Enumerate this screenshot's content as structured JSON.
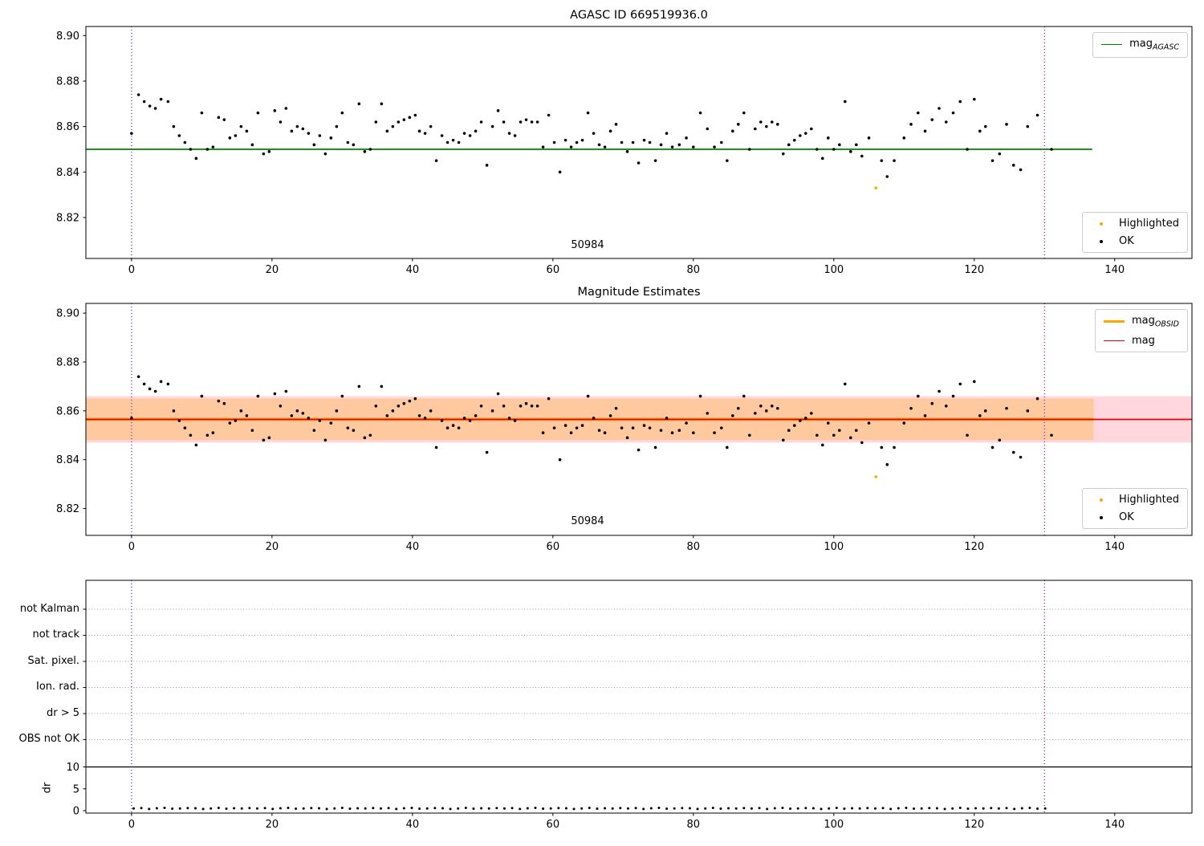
{
  "titles": {
    "top": "AGASC ID 669519936.0",
    "middle": "Magnitude Estimates"
  },
  "legends": {
    "highlighted_label": "Highlighted",
    "ok_label": "OK",
    "highlighted_color": "#ffa500",
    "ok_color": "#000000",
    "mag_agasc": {
      "main": "mag",
      "sub": "AGASC"
    },
    "mag_obsid": {
      "main": "mag",
      "sub": "OBSID"
    },
    "mag": {
      "main": "mag"
    }
  },
  "chart_data": {
    "type": "scatter",
    "shared": {
      "xlim": [
        -6.5,
        151
      ],
      "xticks": [
        0,
        20,
        40,
        60,
        80,
        100,
        120,
        140
      ],
      "vlines": {
        "x": [
          0,
          130
        ],
        "color": "#a000a0"
      },
      "obsid_label": "50984",
      "highlighted_points": [
        [
          106,
          8.833
        ]
      ],
      "ok_points": [
        [
          0.0,
          8.857
        ],
        [
          1.0,
          8.874
        ],
        [
          1.8,
          8.871
        ],
        [
          2.6,
          8.869
        ],
        [
          3.4,
          8.868
        ],
        [
          4.2,
          8.872
        ],
        [
          5.2,
          8.871
        ],
        [
          6.0,
          8.86
        ],
        [
          6.8,
          8.856
        ],
        [
          7.6,
          8.853
        ],
        [
          8.4,
          8.85
        ],
        [
          9.2,
          8.846
        ],
        [
          10.0,
          8.866
        ],
        [
          10.8,
          8.85
        ],
        [
          11.6,
          8.851
        ],
        [
          12.4,
          8.864
        ],
        [
          13.2,
          8.863
        ],
        [
          14.0,
          8.855
        ],
        [
          14.8,
          8.856
        ],
        [
          15.6,
          8.86
        ],
        [
          16.4,
          8.858
        ],
        [
          17.2,
          8.852
        ],
        [
          18.0,
          8.866
        ],
        [
          18.8,
          8.848
        ],
        [
          19.6,
          8.849
        ],
        [
          20.4,
          8.867
        ],
        [
          21.2,
          8.862
        ],
        [
          22.0,
          8.868
        ],
        [
          22.8,
          8.858
        ],
        [
          23.6,
          8.86
        ],
        [
          24.4,
          8.859
        ],
        [
          25.2,
          8.857
        ],
        [
          26.0,
          8.852
        ],
        [
          26.8,
          8.856
        ],
        [
          27.6,
          8.848
        ],
        [
          28.4,
          8.855
        ],
        [
          29.2,
          8.86
        ],
        [
          30.0,
          8.866
        ],
        [
          30.8,
          8.853
        ],
        [
          31.6,
          8.852
        ],
        [
          32.4,
          8.87
        ],
        [
          33.2,
          8.849
        ],
        [
          34.0,
          8.85
        ],
        [
          34.8,
          8.862
        ],
        [
          35.6,
          8.87
        ],
        [
          36.4,
          8.858
        ],
        [
          37.2,
          8.86
        ],
        [
          38.0,
          8.862
        ],
        [
          38.8,
          8.863
        ],
        [
          39.6,
          8.864
        ],
        [
          40.4,
          8.865
        ],
        [
          41.0,
          8.858
        ],
        [
          41.8,
          8.857
        ],
        [
          42.6,
          8.86
        ],
        [
          43.4,
          8.845
        ],
        [
          44.2,
          8.856
        ],
        [
          45.0,
          8.853
        ],
        [
          45.8,
          8.854
        ],
        [
          46.6,
          8.853
        ],
        [
          47.4,
          8.857
        ],
        [
          48.2,
          8.856
        ],
        [
          49.0,
          8.858
        ],
        [
          49.8,
          8.862
        ],
        [
          50.6,
          8.843
        ],
        [
          51.4,
          8.86
        ],
        [
          52.2,
          8.867
        ],
        [
          53.0,
          8.862
        ],
        [
          53.8,
          8.857
        ],
        [
          54.6,
          8.856
        ],
        [
          55.4,
          8.862
        ],
        [
          56.2,
          8.863
        ],
        [
          57.0,
          8.862
        ],
        [
          57.8,
          8.862
        ],
        [
          58.6,
          8.851
        ],
        [
          59.4,
          8.865
        ],
        [
          60.2,
          8.853
        ],
        [
          61.0,
          8.84
        ],
        [
          61.8,
          8.854
        ],
        [
          62.6,
          8.851
        ],
        [
          63.4,
          8.853
        ],
        [
          64.2,
          8.854
        ],
        [
          65.0,
          8.866
        ],
        [
          65.8,
          8.857
        ],
        [
          66.6,
          8.852
        ],
        [
          67.4,
          8.851
        ],
        [
          68.2,
          8.858
        ],
        [
          69.0,
          8.861
        ],
        [
          69.8,
          8.853
        ],
        [
          70.6,
          8.849
        ],
        [
          71.4,
          8.853
        ],
        [
          72.2,
          8.844
        ],
        [
          73.0,
          8.854
        ],
        [
          73.8,
          8.853
        ],
        [
          74.6,
          8.845
        ],
        [
          75.4,
          8.852
        ],
        [
          76.2,
          8.857
        ],
        [
          77.0,
          8.851
        ],
        [
          78.0,
          8.852
        ],
        [
          79.0,
          8.855
        ],
        [
          80.0,
          8.851
        ],
        [
          81.0,
          8.866
        ],
        [
          82.0,
          8.859
        ],
        [
          83.0,
          8.851
        ],
        [
          84.0,
          8.853
        ],
        [
          84.8,
          8.845
        ],
        [
          85.6,
          8.858
        ],
        [
          86.4,
          8.861
        ],
        [
          87.2,
          8.866
        ],
        [
          88.0,
          8.85
        ],
        [
          88.8,
          8.859
        ],
        [
          89.6,
          8.862
        ],
        [
          90.4,
          8.86
        ],
        [
          91.2,
          8.862
        ],
        [
          92.0,
          8.861
        ],
        [
          92.8,
          8.848
        ],
        [
          93.6,
          8.852
        ],
        [
          94.4,
          8.854
        ],
        [
          95.2,
          8.856
        ],
        [
          96.0,
          8.857
        ],
        [
          96.8,
          8.859
        ],
        [
          97.6,
          8.85
        ],
        [
          98.4,
          8.846
        ],
        [
          99.2,
          8.855
        ],
        [
          100.0,
          8.85
        ],
        [
          100.8,
          8.852
        ],
        [
          101.6,
          8.871
        ],
        [
          102.4,
          8.849
        ],
        [
          103.2,
          8.852
        ],
        [
          104.0,
          8.847
        ],
        [
          105.0,
          8.855
        ],
        [
          106.8,
          8.845
        ],
        [
          107.6,
          8.838
        ],
        [
          108.6,
          8.845
        ],
        [
          110.0,
          8.855
        ],
        [
          111.0,
          8.861
        ],
        [
          112.0,
          8.866
        ],
        [
          113.0,
          8.858
        ],
        [
          114.0,
          8.863
        ],
        [
          115.0,
          8.868
        ],
        [
          116.0,
          8.862
        ],
        [
          117.0,
          8.866
        ],
        [
          118.0,
          8.871
        ],
        [
          119.0,
          8.85
        ],
        [
          120.0,
          8.872
        ],
        [
          120.8,
          8.858
        ],
        [
          121.6,
          8.86
        ],
        [
          122.6,
          8.845
        ],
        [
          123.6,
          8.848
        ],
        [
          124.6,
          8.861
        ],
        [
          125.6,
          8.843
        ],
        [
          126.6,
          8.841
        ],
        [
          127.6,
          8.86
        ],
        [
          129.0,
          8.865
        ],
        [
          131.0,
          8.85
        ]
      ]
    },
    "top": {
      "title": "AGASC ID 669519936.0",
      "ylim": [
        8.802,
        8.904
      ],
      "yticks": [
        8.82,
        8.84,
        8.86,
        8.88,
        8.9
      ],
      "mag_agasc_line": {
        "y": 8.85,
        "x_range": [
          -6.5,
          136.8
        ],
        "color": "#008000",
        "width": 1.8
      }
    },
    "middle": {
      "title": "Magnitude Estimates",
      "ylim": [
        8.809,
        8.904
      ],
      "yticks": [
        8.82,
        8.84,
        8.86,
        8.88,
        8.9
      ],
      "mag_line": {
        "y": 8.8565,
        "x_range": [
          -6.5,
          151
        ],
        "color": "#e8000b",
        "width": 1.8
      },
      "mag_obsid_line": {
        "y": 8.8565,
        "x_range": [
          -6.5,
          137
        ],
        "color": "#ffa500",
        "width": 3.5
      },
      "mag_band": {
        "y": [
          8.847,
          8.866
        ],
        "x_range": [
          -6.5,
          151
        ],
        "fill": "rgba(255,182,193,0.55)"
      },
      "obsid_band": {
        "y": [
          8.848,
          8.865
        ],
        "x_range": [
          -6.5,
          137
        ],
        "fill": "rgba(255,165,0,0.28)"
      }
    },
    "bottom": {
      "flag_categories": [
        "not Kalman",
        "not track",
        "Sat. pixel.",
        "Ion. rad.",
        "dr > 5",
        "OBS not OK"
      ],
      "flag_points": [],
      "dr_axis": {
        "label": "dr",
        "yticks": [
          0,
          5,
          10
        ],
        "threshold": 10
      },
      "dr_points": {
        "x_start": 0.3,
        "x_step": 1.1,
        "values": [
          0.5,
          0.6,
          0.4,
          0.55,
          0.65,
          0.45,
          0.5,
          0.6,
          0.55,
          0.4,
          0.5,
          0.65,
          0.45,
          0.55,
          0.5,
          0.6,
          0.5,
          0.6,
          0.4,
          0.55,
          0.65,
          0.45,
          0.5,
          0.6,
          0.55,
          0.4,
          0.5,
          0.65,
          0.45,
          0.55,
          0.5,
          0.6,
          0.5,
          0.6,
          0.4,
          0.55,
          0.65,
          0.45,
          0.5,
          0.6,
          0.55,
          0.4,
          0.5,
          0.65,
          0.45,
          0.55,
          0.5,
          0.6,
          0.5,
          0.6,
          0.4,
          0.55,
          0.65,
          0.45,
          0.5,
          0.6,
          0.55,
          0.4,
          0.5,
          0.65,
          0.45,
          0.55,
          0.5,
          0.6,
          0.5,
          0.6,
          0.4,
          0.55,
          0.65,
          0.45,
          0.5,
          0.6,
          0.55,
          0.4,
          0.5,
          0.65,
          0.45,
          0.55,
          0.5,
          0.6,
          0.5,
          0.6,
          0.4,
          0.55,
          0.65,
          0.45,
          0.5,
          0.6,
          0.55,
          0.4,
          0.5,
          0.65,
          0.45,
          0.55,
          0.5,
          0.6,
          0.5,
          0.6,
          0.4,
          0.55,
          0.65,
          0.45,
          0.5,
          0.6,
          0.55,
          0.4,
          0.5,
          0.65,
          0.45,
          0.55,
          0.5,
          0.6,
          0.5,
          0.6,
          0.4,
          0.55,
          0.65,
          0.45,
          0.5
        ]
      }
    }
  }
}
